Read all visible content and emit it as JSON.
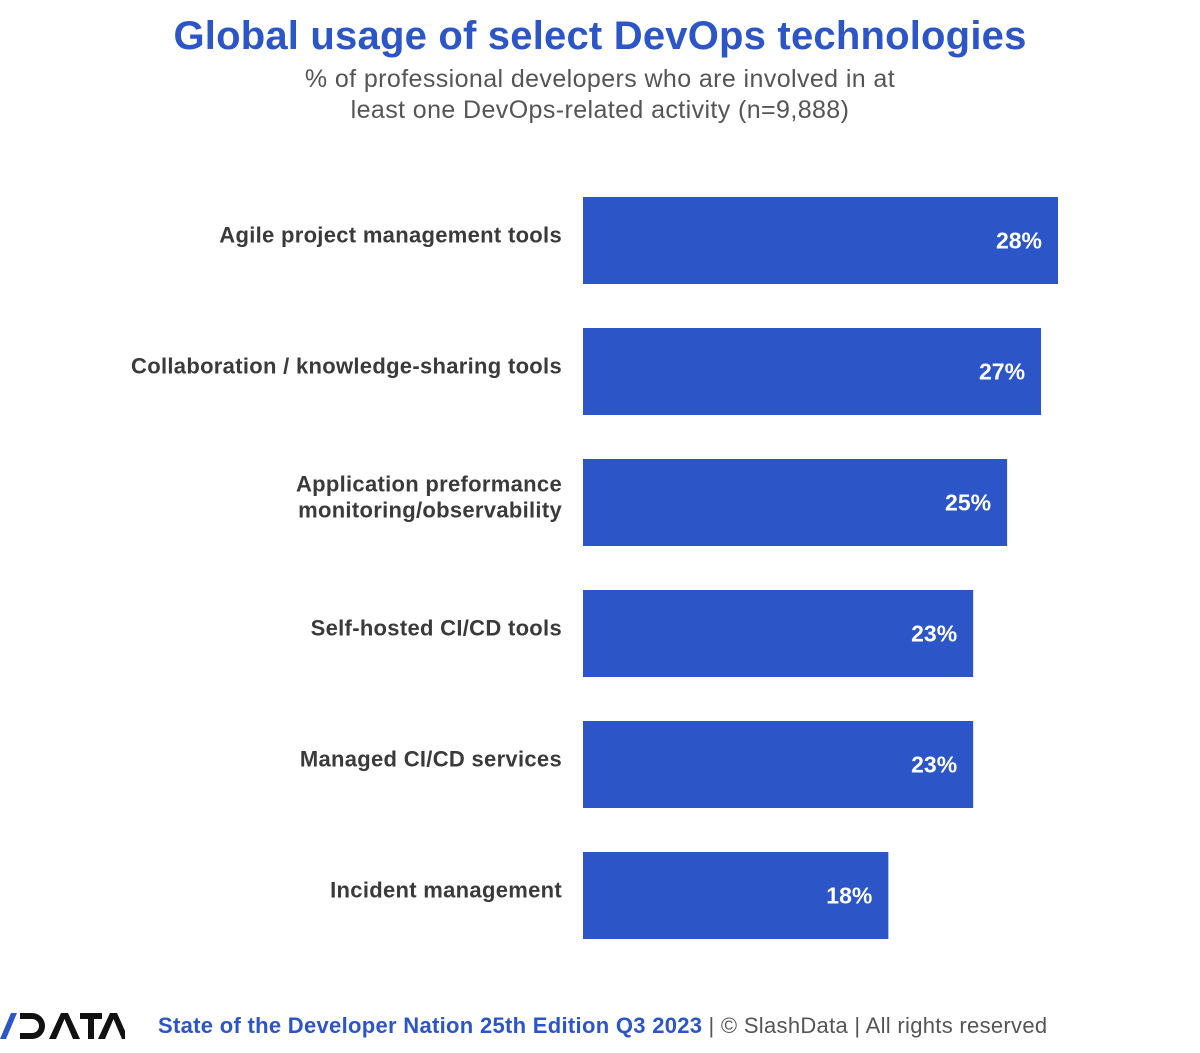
{
  "chart_data": {
    "type": "bar",
    "orientation": "horizontal",
    "title": "Global usage of select DevOps technologies",
    "subtitle": "% of professional developers who are involved in at least one DevOps-related activity (n=9,888)",
    "categories": [
      [
        "Agile project management tools"
      ],
      [
        "Collaboration / knowledge-sharing tools"
      ],
      [
        "Application preformance",
        "monitoring/observability"
      ],
      [
        "Self-hosted CI/CD tools"
      ],
      [
        "Managed CI/CD services"
      ],
      [
        "Incident management"
      ]
    ],
    "values": [
      28,
      27,
      25,
      23,
      23,
      18
    ],
    "value_labels": [
      "28%",
      "27%",
      "25%",
      "23%",
      "23%",
      "18%"
    ],
    "unit": "%",
    "xlim": [
      0,
      28
    ],
    "grid": false,
    "legend": "none",
    "bar_color": "#2c55c8"
  },
  "footer": {
    "logo_text": "/DATA",
    "edition": "State of the Developer Nation 25th Edition Q3 2023",
    "rest": "| © SlashData | All rights reserved"
  },
  "colors": {
    "accent": "#2c55c8",
    "label_text": "#3a3a3a",
    "subtitle_text": "#555555"
  }
}
